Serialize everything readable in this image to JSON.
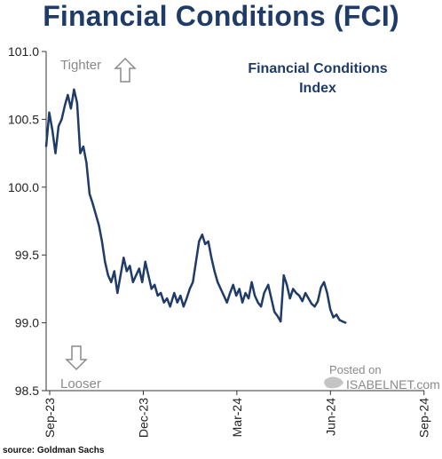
{
  "title": "Financial Conditions (FCI)",
  "source": "source: Goldman Sachs",
  "chart_data": {
    "type": "line",
    "title": "Financial Conditions (FCI)",
    "ylim": [
      98.5,
      101.0
    ],
    "yticks": [
      "101.0",
      "100.5",
      "100.0",
      "99.5",
      "99.0",
      "98.5"
    ],
    "xticks": [
      "Sep-23",
      "Dec-23",
      "Mar-24",
      "Jun-24",
      "Sep-24"
    ],
    "xlim": [
      "2023-09-01",
      "2024-09-01"
    ],
    "grid": false,
    "legend_position": "top-right",
    "annotations": {
      "legend_line1": "Financial Conditions",
      "legend_line2": "Index",
      "tighter": "Tighter",
      "looser": "Looser",
      "watermark_line1": "Posted on",
      "watermark_line2": "ISABELNET.com"
    },
    "series": [
      {
        "name": "Financial Conditions Index",
        "color": "#1f3b68",
        "x": [
          "2023-09-01",
          "2023-09-04",
          "2023-09-07",
          "2023-09-10",
          "2023-09-13",
          "2023-09-16",
          "2023-09-19",
          "2023-09-22",
          "2023-09-25",
          "2023-09-28",
          "2023-10-01",
          "2023-10-04",
          "2023-10-07",
          "2023-10-10",
          "2023-10-13",
          "2023-10-16",
          "2023-10-19",
          "2023-10-22",
          "2023-10-25",
          "2023-10-28",
          "2023-10-31",
          "2023-11-03",
          "2023-11-06",
          "2023-11-09",
          "2023-11-12",
          "2023-11-15",
          "2023-11-18",
          "2023-11-21",
          "2023-11-24",
          "2023-11-27",
          "2023-11-30",
          "2023-12-03",
          "2023-12-06",
          "2023-12-09",
          "2023-12-12",
          "2023-12-15",
          "2023-12-18",
          "2023-12-21",
          "2023-12-24",
          "2023-12-27",
          "2023-12-30",
          "2024-01-03",
          "2024-01-06",
          "2024-01-09",
          "2024-01-12",
          "2024-01-15",
          "2024-01-18",
          "2024-01-21",
          "2024-01-24",
          "2024-01-27",
          "2024-01-30",
          "2024-02-02",
          "2024-02-05",
          "2024-02-08",
          "2024-02-11",
          "2024-02-14",
          "2024-02-17",
          "2024-02-20",
          "2024-02-23",
          "2024-02-26",
          "2024-02-29",
          "2024-03-03",
          "2024-03-06",
          "2024-03-09",
          "2024-03-12",
          "2024-03-15",
          "2024-03-18",
          "2024-03-21",
          "2024-03-24",
          "2024-03-27",
          "2024-03-30",
          "2024-04-03",
          "2024-04-06",
          "2024-04-09",
          "2024-04-12",
          "2024-04-15",
          "2024-04-18",
          "2024-04-21",
          "2024-04-24",
          "2024-04-27",
          "2024-04-30",
          "2024-05-03",
          "2024-05-06",
          "2024-05-09",
          "2024-05-12",
          "2024-05-15",
          "2024-05-18",
          "2024-05-21",
          "2024-05-24",
          "2024-05-27",
          "2024-05-30",
          "2024-06-02",
          "2024-06-05",
          "2024-06-08",
          "2024-06-11",
          "2024-06-14",
          "2024-06-17"
        ],
        "values": [
          100.3,
          100.55,
          100.42,
          100.25,
          100.45,
          100.5,
          100.6,
          100.68,
          100.58,
          100.72,
          100.62,
          100.25,
          100.3,
          100.18,
          99.95,
          99.88,
          99.8,
          99.72,
          99.6,
          99.45,
          99.35,
          99.3,
          99.38,
          99.22,
          99.35,
          99.48,
          99.38,
          99.42,
          99.3,
          99.35,
          99.4,
          99.3,
          99.45,
          99.35,
          99.25,
          99.28,
          99.2,
          99.22,
          99.15,
          99.18,
          99.12,
          99.22,
          99.15,
          99.2,
          99.12,
          99.18,
          99.25,
          99.3,
          99.45,
          99.6,
          99.65,
          99.58,
          99.6,
          99.48,
          99.38,
          99.3,
          99.25,
          99.2,
          99.15,
          99.22,
          99.28,
          99.2,
          99.25,
          99.15,
          99.22,
          99.18,
          99.3,
          99.2,
          99.15,
          99.12,
          99.22,
          99.28,
          99.18,
          99.08,
          99.05,
          99.01,
          99.35,
          99.28,
          99.18,
          99.25,
          99.22,
          99.2,
          99.16,
          99.22,
          99.18,
          99.14,
          99.12,
          99.16,
          99.26,
          99.3,
          99.22,
          99.1,
          99.04,
          99.06,
          99.02,
          99.01,
          99.0
        ]
      }
    ]
  }
}
